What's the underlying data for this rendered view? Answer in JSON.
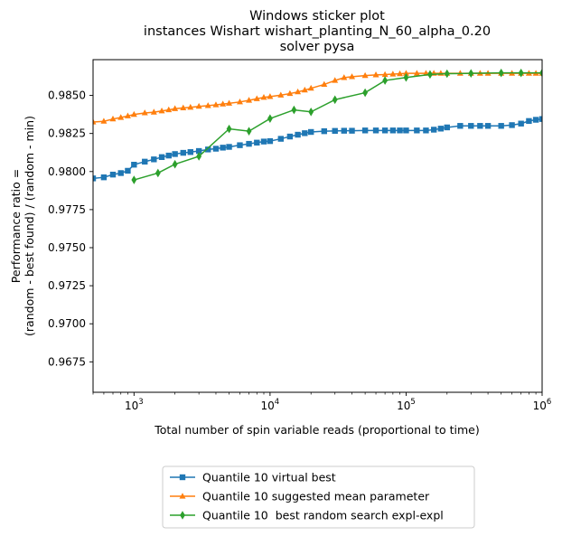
{
  "chart_data": {
    "type": "line",
    "title_lines": [
      "Windows sticker plot",
      "instances Wishart wishart_planting_N_60_alpha_0.20",
      "solver pysa"
    ],
    "xlabel": "Total number of spin variable reads (proportional to time)",
    "ylabel_lines": [
      "Performance ratio =",
      "(random - best found) / (random - min)"
    ],
    "xscale": "log",
    "xlim": [
      500,
      1000000
    ],
    "ylim": [
      0.9655,
      0.98735
    ],
    "xticks": [
      {
        "value": 1000,
        "base": "10",
        "exp": "3"
      },
      {
        "value": 10000,
        "base": "10",
        "exp": "4"
      },
      {
        "value": 100000,
        "base": "10",
        "exp": "5"
      },
      {
        "value": 1000000,
        "base": "10",
        "exp": "6"
      }
    ],
    "yticks": [
      0.9675,
      0.97,
      0.9725,
      0.975,
      0.9775,
      0.98,
      0.9825,
      0.985
    ],
    "ytick_labels": [
      "0.9675",
      "0.9700",
      "0.9725",
      "0.9750",
      "0.9775",
      "0.9800",
      "0.9825",
      "0.9850"
    ],
    "grid": false,
    "legend_position": "bottom-center-below-axes",
    "series": [
      {
        "name": "Quantile 10 virtual best",
        "color": "#1f77b4",
        "marker": "square",
        "x": [
          500,
          600,
          700,
          800,
          900,
          1000,
          1200,
          1400,
          1600,
          1800,
          2000,
          2300,
          2600,
          3000,
          3500,
          4000,
          4500,
          5000,
          6000,
          7000,
          8000,
          9000,
          10000,
          12000,
          14000,
          16000,
          18000,
          20000,
          25000,
          30000,
          35000,
          40000,
          50000,
          60000,
          70000,
          80000,
          90000,
          100000,
          120000,
          140000,
          160000,
          180000,
          200000,
          250000,
          300000,
          350000,
          400000,
          500000,
          600000,
          700000,
          800000,
          900000,
          1000000
        ],
        "values": [
          0.97955,
          0.97962,
          0.9798,
          0.9799,
          0.98005,
          0.98045,
          0.98065,
          0.9808,
          0.98095,
          0.98105,
          0.98115,
          0.98123,
          0.98128,
          0.98135,
          0.98145,
          0.9815,
          0.98157,
          0.98162,
          0.98173,
          0.98182,
          0.9819,
          0.98197,
          0.982,
          0.98215,
          0.9823,
          0.98242,
          0.98252,
          0.9826,
          0.98265,
          0.98267,
          0.98268,
          0.98268,
          0.9827,
          0.9827,
          0.9827,
          0.9827,
          0.9827,
          0.9827,
          0.9827,
          0.9827,
          0.98275,
          0.98282,
          0.9829,
          0.983,
          0.983,
          0.983,
          0.983,
          0.983,
          0.98305,
          0.98315,
          0.98332,
          0.9834,
          0.98345
        ]
      },
      {
        "name": "Quantile 10 suggested mean parameter",
        "color": "#ff7f0e",
        "marker": "triangle",
        "x": [
          500,
          600,
          700,
          800,
          900,
          1000,
          1200,
          1400,
          1600,
          1800,
          2000,
          2300,
          2600,
          3000,
          3500,
          4000,
          4500,
          5000,
          6000,
          7000,
          8000,
          9000,
          10000,
          12000,
          14000,
          16000,
          18000,
          20000,
          25000,
          30000,
          35000,
          40000,
          50000,
          60000,
          70000,
          80000,
          90000,
          100000,
          120000,
          140000,
          160000,
          180000,
          200000,
          250000,
          300000,
          350000,
          400000,
          500000,
          600000,
          700000,
          800000,
          900000,
          1000000
        ],
        "values": [
          0.98325,
          0.9833,
          0.98345,
          0.98355,
          0.98365,
          0.98375,
          0.98385,
          0.9839,
          0.98398,
          0.98405,
          0.98413,
          0.98418,
          0.98422,
          0.98428,
          0.98433,
          0.98438,
          0.98443,
          0.98448,
          0.98457,
          0.98468,
          0.98478,
          0.98487,
          0.98492,
          0.98502,
          0.98512,
          0.98523,
          0.98535,
          0.98547,
          0.98572,
          0.98598,
          0.98617,
          0.98623,
          0.9863,
          0.98635,
          0.98637,
          0.9864,
          0.98642,
          0.98645,
          0.98645,
          0.98645,
          0.98645,
          0.98645,
          0.98645,
          0.98645,
          0.98645,
          0.98645,
          0.98645,
          0.98645,
          0.98645,
          0.98645,
          0.98645,
          0.98645,
          0.98645
        ]
      },
      {
        "name": "Quantile 10  best random search expl-expl",
        "color": "#2ca02c",
        "marker": "diamond",
        "x": [
          1000,
          1500,
          2000,
          3000,
          5000,
          7000,
          10000,
          15000,
          20000,
          30000,
          50000,
          70000,
          100000,
          150000,
          200000,
          300000,
          500000,
          700000,
          1000000
        ],
        "values": [
          0.97945,
          0.9799,
          0.98048,
          0.981,
          0.9828,
          0.98265,
          0.98348,
          0.98405,
          0.98392,
          0.98472,
          0.98518,
          0.98598,
          0.98618,
          0.98638,
          0.98643,
          0.98645,
          0.98648,
          0.98648,
          0.98648
        ]
      }
    ]
  }
}
